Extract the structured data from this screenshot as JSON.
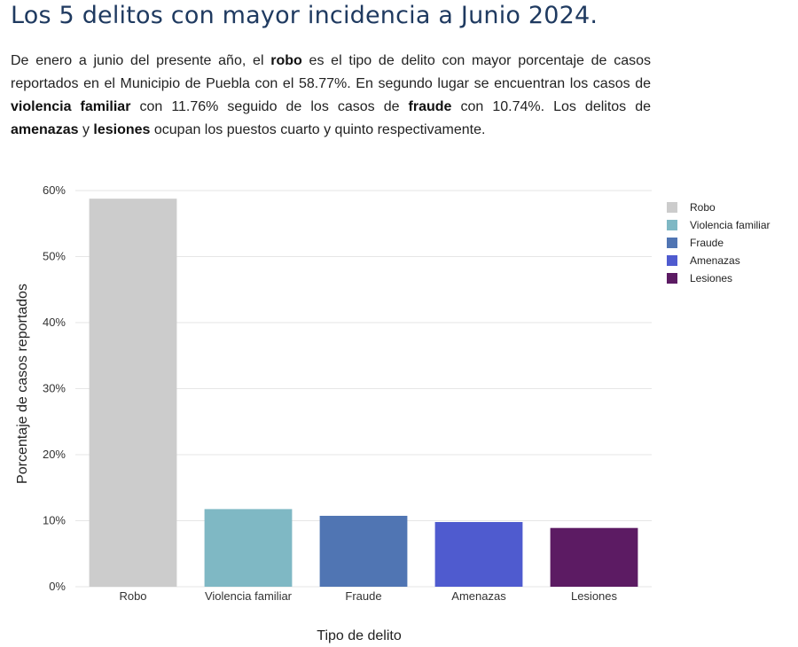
{
  "title": "Los 5 delitos con mayor incidencia a Junio 2024.",
  "description": {
    "p1": "De enero a junio del presente año, el ",
    "b1": "robo",
    "p2": " es el tipo de delito con mayor porcentaje de casos reportados en el Municipio de Puebla con el 58.77%. En segundo lugar se encuentran los casos de ",
    "b2": "violencia familiar",
    "p3": " con 11.76% seguido de los casos de ",
    "b3": "fraude",
    "p4": " con 10.74%. Los delitos de ",
    "b4": "amenazas",
    "p5": " y ",
    "b5": "lesiones",
    "p6": " ocupan los puestos cuarto y quinto respectivamente."
  },
  "chart_data": {
    "type": "bar",
    "categories": [
      "Robo",
      "Violencia familiar",
      "Fraude",
      "Amenazas",
      "Lesiones"
    ],
    "values": [
      58.77,
      11.76,
      10.74,
      9.8,
      8.9
    ],
    "colors": [
      "#cccccc",
      "#7fb8c4",
      "#5075b3",
      "#4f5bcf",
      "#5c1b63"
    ],
    "xlabel": "Tipo de delito",
    "ylabel": "Porcentaje de casos reportados",
    "ylim": [
      0,
      60
    ],
    "yticks": [
      0,
      10,
      20,
      30,
      40,
      50,
      60
    ],
    "ytick_labels": [
      "0%",
      "10%",
      "20%",
      "30%",
      "40%",
      "50%",
      "60%"
    ],
    "grid": true,
    "legend": {
      "position": "top-right",
      "entries": [
        "Robo",
        "Violencia familiar",
        "Fraude",
        "Amenazas",
        "Lesiones"
      ]
    }
  }
}
